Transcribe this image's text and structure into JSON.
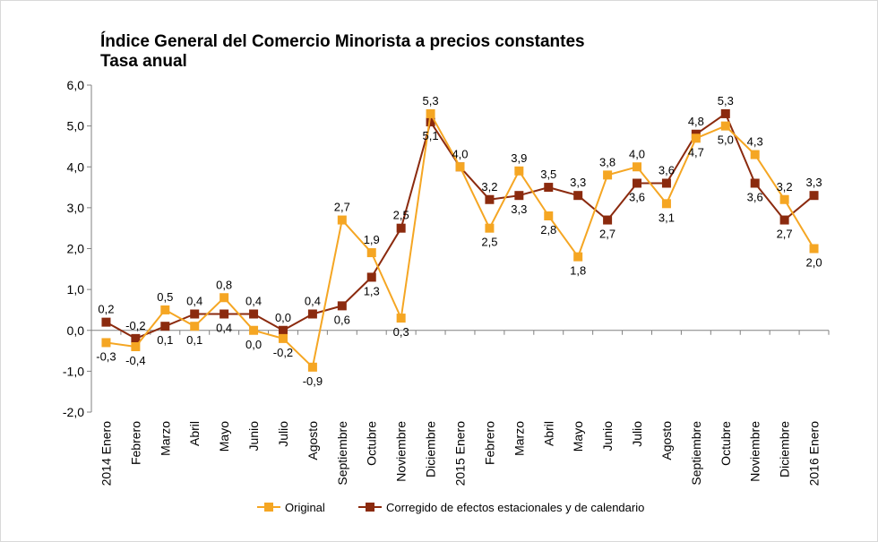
{
  "chart_data": {
    "type": "line",
    "title": "Índice General del Comercio Minorista a precios constantes",
    "subtitle": "Tasa anual",
    "xlabel": "",
    "ylabel": "",
    "ylim": [
      -2.0,
      6.0
    ],
    "yticks": [
      "6,0",
      "5,0",
      "4,0",
      "3,0",
      "2,0",
      "1,0",
      "0,0",
      "-1,0",
      "-2,0"
    ],
    "categories": [
      "2014 Enero",
      "Febrero",
      "Marzo",
      "Abril",
      "Mayo",
      "Junio",
      "Julio",
      "Agosto",
      "Septiembre",
      "Octubre",
      "Noviembre",
      "Diciembre",
      "2015 Enero",
      "Febrero",
      "Marzo",
      "Abril",
      "Mayo",
      "Junio",
      "Julio",
      "Agosto",
      "Septiembre",
      "Octubre",
      "Noviembre",
      "Diciembre",
      "2016 Enero"
    ],
    "series": [
      {
        "name": "Original",
        "color": "#F5A623",
        "values": [
          -0.3,
          -0.4,
          0.5,
          0.1,
          0.8,
          0.0,
          -0.2,
          -0.9,
          2.7,
          1.9,
          0.3,
          5.3,
          4.0,
          2.5,
          3.9,
          2.8,
          1.8,
          3.8,
          4.0,
          3.1,
          4.7,
          5.0,
          4.3,
          3.2,
          2.0
        ],
        "labels": [
          "-0,3",
          "-0,4",
          "0,5",
          "0,1",
          "0,8",
          "0,0",
          "-0,2",
          "-0,9",
          "2,7",
          "1,9",
          "0,3",
          "5,3",
          "4,0",
          "2,5",
          "3,9",
          "2,8",
          "1,8",
          "3,8",
          "4,0",
          "3,1",
          "4,7",
          "5,0",
          "4,3",
          "3,2",
          "2,0"
        ],
        "label_pos": [
          "below",
          "below",
          "above",
          "below",
          "above",
          "below",
          "below",
          "below",
          "above",
          "above",
          "below",
          "above",
          "above",
          "below",
          "above",
          "below",
          "below",
          "above",
          "above",
          "below",
          "below",
          "below",
          "above",
          "above",
          "below"
        ]
      },
      {
        "name": "Corregido de efectos estacionales y de calendario",
        "color": "#8B2A0E",
        "values": [
          0.2,
          -0.2,
          0.1,
          0.4,
          0.4,
          0.4,
          0.0,
          0.4,
          0.6,
          1.3,
          2.5,
          5.1,
          4.0,
          3.2,
          3.3,
          3.5,
          3.3,
          2.7,
          3.6,
          3.6,
          4.8,
          5.3,
          3.6,
          2.7,
          3.3
        ],
        "labels": [
          "0,2",
          "-0,2",
          "0,1",
          "0,4",
          "0,4",
          "0,4",
          "0,0",
          "0,4",
          "0,6",
          "1,3",
          "2,5",
          "5,1",
          "",
          "3,2",
          "3,3",
          "3,5",
          "3,3",
          "2,7",
          "3,6",
          "3,6",
          "4,8",
          "5,3",
          "3,6",
          "2,7",
          "3,3"
        ],
        "label_pos": [
          "above",
          "above",
          "below",
          "above",
          "below",
          "above",
          "above",
          "above",
          "below",
          "below",
          "above",
          "below",
          "none",
          "above",
          "below",
          "above",
          "above",
          "below",
          "below",
          "above",
          "above",
          "above",
          "below",
          "below",
          "above"
        ]
      }
    ],
    "legend": "bottom-center"
  }
}
